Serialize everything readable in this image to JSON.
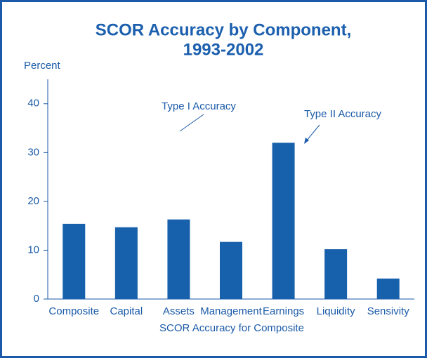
{
  "chart_data": {
    "type": "bar",
    "title": [
      "SCOR Accuracy by Component,",
      "1993-2002"
    ],
    "y_label": "Percent",
    "x_label": "SCOR Accuracy for Composite",
    "categories": [
      "Composite",
      "Capital",
      "Assets",
      "Management",
      "Earnings",
      "Liquidity",
      "Sensivity"
    ],
    "values": [
      15.4,
      14.7,
      16.3,
      11.7,
      32,
      10.2,
      4.2
    ],
    "color": "#1760ab",
    "ylim": [
      0,
      45
    ],
    "yticks": [
      0,
      10,
      20,
      30,
      40
    ],
    "annotations": [
      "Type I Accuracy",
      "Type II Accuracy"
    ]
  }
}
